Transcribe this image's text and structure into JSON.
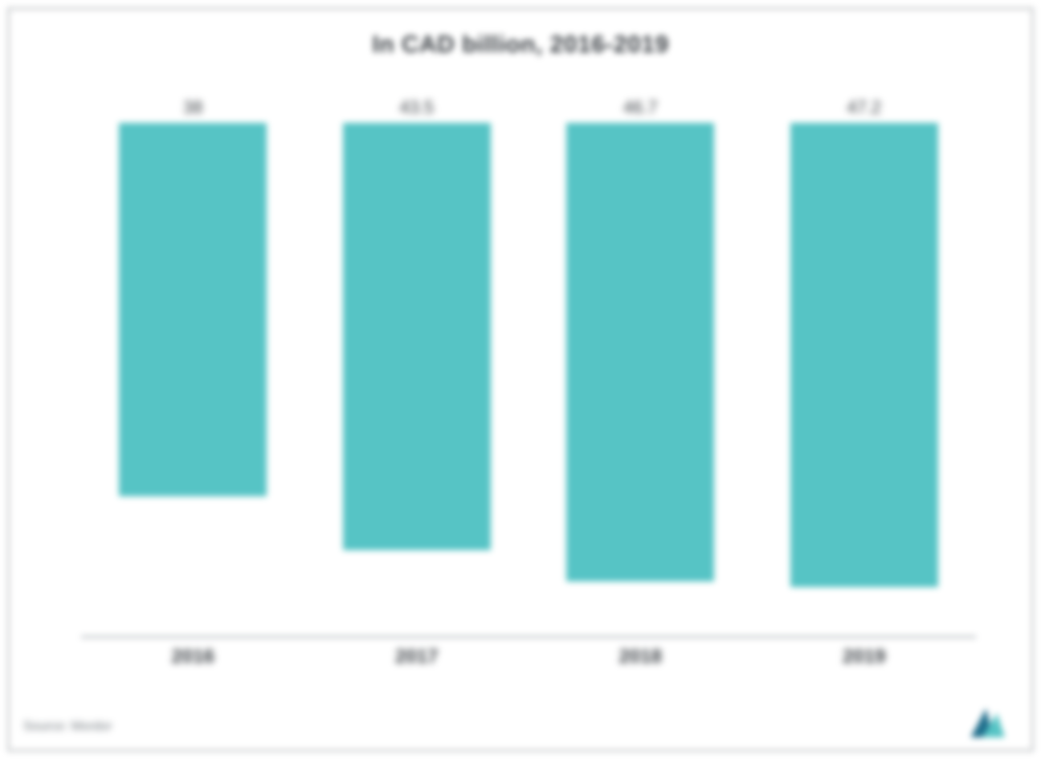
{
  "chart": {
    "type": "bar",
    "title": "In CAD billion, 2016-2019",
    "title_fontsize": 30,
    "title_color": "#3a3f44",
    "categories": [
      "2016",
      "2017",
      "2018",
      "2019"
    ],
    "values": [
      38,
      43.5,
      46.7,
      47.2
    ],
    "value_labels": [
      "38",
      "43.5",
      "46.7",
      "47.2"
    ],
    "bar_color": "#56c4c5",
    "ylim": [
      0,
      55
    ],
    "bar_width_pct": 66,
    "background_color": "#ffffff",
    "frame_border_color": "#586067",
    "axis_line_color": "#9aa1a7",
    "xlabel_fontsize": 24,
    "xlabel_weight": 700,
    "value_label_fontsize": 22,
    "text_color": "#3a3f44"
  },
  "footer": {
    "source_label": "Source: Mordor",
    "source_color": "#6d747a",
    "logo_text": "",
    "logo_color_dark": "#1f6e8c",
    "logo_color_light": "#56c4c5"
  }
}
